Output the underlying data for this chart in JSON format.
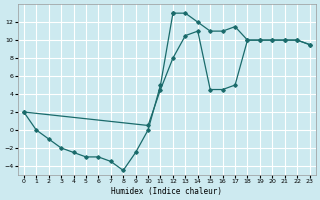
{
  "xlabel": "Humidex (Indice chaleur)",
  "background_color": "#cdeaf0",
  "grid_color": "#ffffff",
  "line_color": "#1a6b6b",
  "xlim": [
    -0.5,
    23.5
  ],
  "ylim": [
    -5,
    14
  ],
  "xticks": [
    0,
    1,
    2,
    3,
    4,
    5,
    6,
    7,
    8,
    9,
    10,
    11,
    12,
    13,
    14,
    15,
    16,
    17,
    18,
    19,
    20,
    21,
    22,
    23
  ],
  "yticks": [
    -4,
    -2,
    0,
    2,
    4,
    6,
    8,
    10,
    12
  ],
  "line1_x": [
    0,
    1,
    2,
    3,
    4,
    5,
    6,
    7,
    8,
    9,
    10,
    11,
    12
  ],
  "line1_y": [
    2,
    0,
    -1,
    -2,
    -2.5,
    -3,
    -3,
    -3.5,
    -4.5,
    -2.5,
    0,
    5,
    13
  ],
  "line2_x": [
    12,
    13,
    14,
    15,
    16,
    17,
    18,
    19,
    20,
    21,
    22,
    23
  ],
  "line2_y": [
    13,
    13,
    12,
    11,
    11,
    11.5,
    10,
    10,
    10,
    10,
    10,
    9.5
  ],
  "line3_x": [
    0,
    10,
    11,
    12,
    13,
    14,
    15,
    16,
    17,
    18,
    19,
    20,
    21,
    22,
    23
  ],
  "line3_y": [
    2,
    0.5,
    4.5,
    8,
    10.5,
    11,
    4.5,
    4.5,
    5,
    10,
    10,
    10,
    10,
    10,
    9.5
  ]
}
